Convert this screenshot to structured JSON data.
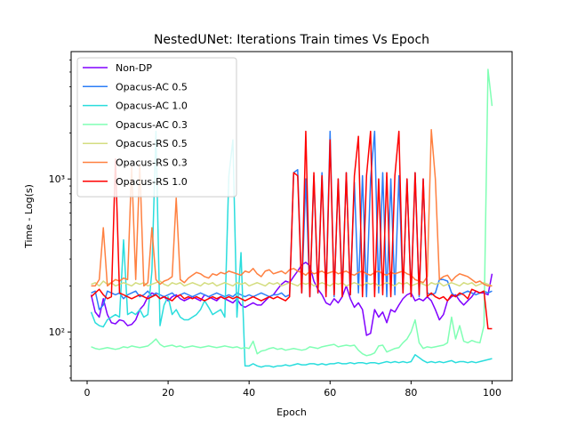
{
  "chart_data": {
    "type": "line",
    "title": "NestedUNet: Iterations Train times Vs Epoch",
    "xlabel": "Epoch",
    "ylabel": "Time - Log(s)",
    "xlim": [
      -3.95,
      104.95
    ],
    "ylim": [
      48,
      6800
    ],
    "yscale": "log",
    "grid": false,
    "legend_position": "top-left",
    "x_ticks": [
      0,
      20,
      40,
      60,
      80,
      100
    ],
    "y_ticks": [
      {
        "value": 100,
        "label": "10²"
      },
      {
        "value": 1000,
        "label": "10³"
      }
    ],
    "x": [
      1,
      2,
      3,
      4,
      5,
      6,
      7,
      8,
      9,
      10,
      11,
      12,
      13,
      14,
      15,
      16,
      17,
      18,
      19,
      20,
      21,
      22,
      23,
      24,
      25,
      26,
      27,
      28,
      29,
      30,
      31,
      32,
      33,
      34,
      35,
      36,
      37,
      38,
      39,
      40,
      41,
      42,
      43,
      44,
      45,
      46,
      47,
      48,
      49,
      50,
      51,
      52,
      53,
      54,
      55,
      56,
      57,
      58,
      59,
      60,
      61,
      62,
      63,
      64,
      65,
      66,
      67,
      68,
      69,
      70,
      71,
      72,
      73,
      74,
      75,
      76,
      77,
      78,
      79,
      80,
      81,
      82,
      83,
      84,
      85,
      86,
      87,
      88,
      89,
      90,
      91,
      92,
      93,
      94,
      95,
      96,
      97,
      98,
      99,
      100
    ],
    "series": [
      {
        "name": "Non-DP",
        "color": "#8000ff",
        "values": [
          175,
          135,
          125,
          165,
          130,
          115,
          113,
          120,
          118,
          110,
          112,
          120,
          140,
          150,
          170,
          180,
          175,
          165,
          170,
          160,
          170,
          175,
          165,
          160,
          165,
          170,
          165,
          160,
          175,
          170,
          165,
          160,
          170,
          165,
          160,
          155,
          165,
          150,
          145,
          150,
          155,
          150,
          150,
          160,
          170,
          175,
          190,
          205,
          215,
          210,
          230,
          250,
          275,
          285,
          270,
          215,
          190,
          175,
          155,
          150,
          165,
          155,
          170,
          200,
          165,
          145,
          155,
          140,
          95,
          98,
          140,
          125,
          135,
          115,
          140,
          135,
          150,
          165,
          175,
          180,
          160,
          165,
          160,
          170,
          160,
          140,
          120,
          130,
          160,
          170,
          175,
          160,
          150,
          160,
          170,
          185,
          180,
          180,
          175,
          240
        ]
      },
      {
        "name": "Opacus-AC 0.5",
        "color": "#2c7ef7",
        "values": [
          180,
          185,
          140,
          150,
          185,
          180,
          175,
          180,
          165,
          175,
          180,
          185,
          170,
          175,
          185,
          170,
          180,
          175,
          170,
          175,
          180,
          170,
          175,
          180,
          175,
          170,
          175,
          180,
          175,
          170,
          175,
          180,
          175,
          170,
          175,
          170,
          180,
          175,
          170,
          175,
          170,
          175,
          180,
          175,
          170,
          175,
          175,
          180,
          170,
          175,
          1100,
          1150,
          180,
          1000,
          170,
          1050,
          180,
          1100,
          175,
          2050,
          170,
          1000,
          180,
          1100,
          175,
          950,
          180,
          1050,
          170,
          1000,
          2050,
          180,
          1100,
          170,
          1000,
          175,
          1050,
          180,
          1000,
          175,
          1100,
          170,
          1000,
          180,
          175,
          180,
          220,
          220,
          215,
          180,
          170,
          175,
          180,
          185,
          180,
          175,
          180,
          185,
          180,
          185
        ]
      },
      {
        "name": "Opacus-AC 1.0",
        "color": "#2adddd",
        "values": [
          135,
          115,
          110,
          108,
          120,
          125,
          130,
          125,
          400,
          130,
          135,
          130,
          140,
          125,
          130,
          250,
          2050,
          110,
          150,
          170,
          130,
          140,
          125,
          120,
          120,
          125,
          130,
          140,
          160,
          145,
          130,
          135,
          140,
          125,
          1050,
          1800,
          125,
          330,
          60,
          60,
          62,
          60,
          59,
          60,
          60,
          59,
          60,
          60,
          61,
          60,
          61,
          62,
          61,
          61,
          62,
          62,
          61,
          62,
          61,
          62,
          62,
          63,
          62,
          62,
          63,
          62,
          63,
          63,
          62,
          63,
          63,
          62,
          63,
          64,
          63,
          64,
          63,
          64,
          63,
          64,
          71,
          68,
          65,
          63,
          64,
          63,
          64,
          63,
          64,
          65,
          63,
          64,
          64,
          63,
          64,
          63,
          64,
          65,
          66,
          67
        ]
      },
      {
        "name": "Opacus-AC 0.3",
        "color": "#80ffb4",
        "values": [
          80,
          78,
          77,
          78,
          79,
          78,
          77,
          78,
          80,
          79,
          81,
          80,
          79,
          80,
          81,
          85,
          90,
          83,
          80,
          81,
          82,
          80,
          81,
          79,
          80,
          81,
          80,
          79,
          80,
          81,
          80,
          79,
          80,
          81,
          80,
          79,
          80,
          78,
          79,
          78,
          87,
          72,
          75,
          76,
          78,
          79,
          77,
          78,
          76,
          77,
          78,
          77,
          76,
          77,
          80,
          79,
          78,
          80,
          81,
          82,
          83,
          80,
          81,
          82,
          81,
          82,
          76,
          72,
          70,
          71,
          73,
          81,
          82,
          74,
          76,
          78,
          79,
          85,
          90,
          100,
          120,
          85,
          78,
          80,
          79,
          80,
          81,
          82,
          85,
          125,
          90,
          110,
          87,
          85,
          88,
          86,
          85,
          110,
          5200,
          3000
        ]
      },
      {
        "name": "Opacus-RS 0.5",
        "color": "#d4dd80",
        "values": [
          205,
          210,
          200,
          215,
          205,
          210,
          200,
          205,
          210,
          205,
          200,
          210,
          205,
          210,
          200,
          205,
          210,
          215,
          205,
          200,
          210,
          205,
          210,
          200,
          205,
          210,
          205,
          200,
          210,
          205,
          210,
          200,
          205,
          210,
          205,
          200,
          210,
          205,
          210,
          200,
          205,
          210,
          205,
          200,
          210,
          205,
          210,
          200,
          205,
          210,
          205,
          200,
          210,
          205,
          210,
          200,
          205,
          210,
          205,
          200,
          210,
          205,
          210,
          200,
          205,
          210,
          205,
          200,
          210,
          205,
          210,
          200,
          205,
          210,
          205,
          200,
          210,
          205,
          210,
          200,
          205,
          210,
          205,
          200,
          210,
          205,
          210,
          200,
          205,
          210,
          205,
          200,
          210,
          205,
          210,
          200,
          205,
          210,
          205,
          200
        ]
      },
      {
        "name": "Opacus-RS 0.3",
        "color": "#ff8040",
        "values": [
          200,
          200,
          220,
          480,
          200,
          210,
          220,
          215,
          225,
          220,
          1200,
          220,
          1250,
          200,
          210,
          480,
          220,
          205,
          215,
          220,
          230,
          750,
          220,
          210,
          225,
          235,
          245,
          240,
          230,
          225,
          240,
          235,
          245,
          240,
          250,
          245,
          240,
          235,
          250,
          245,
          260,
          240,
          230,
          250,
          255,
          240,
          245,
          250,
          240,
          255,
          260,
          250,
          245,
          235,
          250,
          240,
          245,
          250,
          240,
          245,
          250,
          240,
          245,
          250,
          240,
          235,
          245,
          250,
          240,
          235,
          245,
          250,
          240,
          235,
          245,
          240,
          245,
          250,
          240,
          235,
          220,
          215,
          210,
          230,
          2100,
          1000,
          220,
          230,
          235,
          215,
          230,
          240,
          235,
          230,
          220,
          210,
          215,
          205,
          200,
          200
        ]
      },
      {
        "name": "Opacus-RS 1.0",
        "color": "#ff0000",
        "values": [
          170,
          180,
          190,
          175,
          165,
          170,
          1350,
          180,
          175,
          170,
          165,
          170,
          175,
          170,
          165,
          170,
          175,
          165,
          170,
          165,
          160,
          170,
          175,
          165,
          170,
          165,
          170,
          165,
          160,
          165,
          170,
          165,
          170,
          165,
          170,
          165,
          170,
          165,
          160,
          165,
          170,
          165,
          160,
          165,
          170,
          165,
          170,
          165,
          160,
          170,
          1100,
          1050,
          180,
          2050,
          170,
          1100,
          180,
          1050,
          170,
          1800,
          175,
          1000,
          170,
          1100,
          175,
          1050,
          1900,
          170,
          1050,
          2050,
          170,
          1000,
          175,
          1100,
          170,
          1050,
          2050,
          180,
          1000,
          170,
          1100,
          175,
          1000,
          170,
          180,
          170,
          165,
          170,
          160,
          175,
          170,
          180,
          175,
          165,
          190,
          185,
          180,
          185,
          105,
          105
        ]
      }
    ]
  }
}
